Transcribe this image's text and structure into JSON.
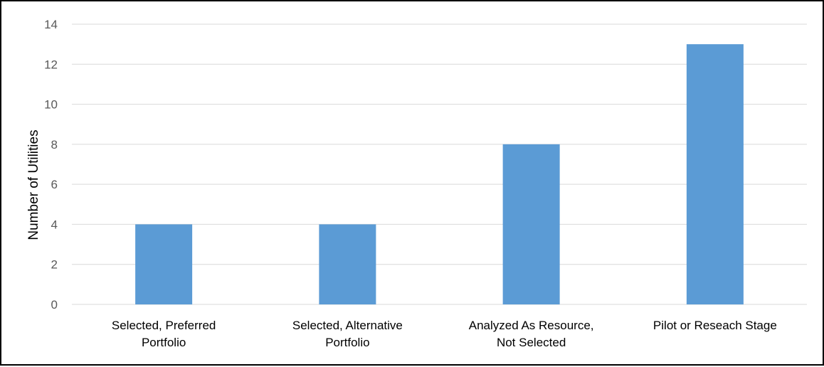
{
  "chart_data": {
    "type": "bar",
    "title": "",
    "xlabel": "",
    "ylabel": "Number of Utilities",
    "categories": [
      [
        "Selected, Preferred",
        "Portfolio"
      ],
      [
        "Selected, Alternative",
        "Portfolio"
      ],
      [
        "Analyzed As Resource,",
        "Not Selected"
      ],
      [
        "Pilot or Reseach Stage"
      ]
    ],
    "values": [
      4,
      4,
      8,
      13
    ],
    "ylim": [
      0,
      14
    ],
    "yticks": [
      0,
      2,
      4,
      6,
      8,
      10,
      12,
      14
    ],
    "grid": true,
    "legend": "none",
    "bar_color": "#5b9bd5",
    "grid_color": "#d9d9d9"
  }
}
